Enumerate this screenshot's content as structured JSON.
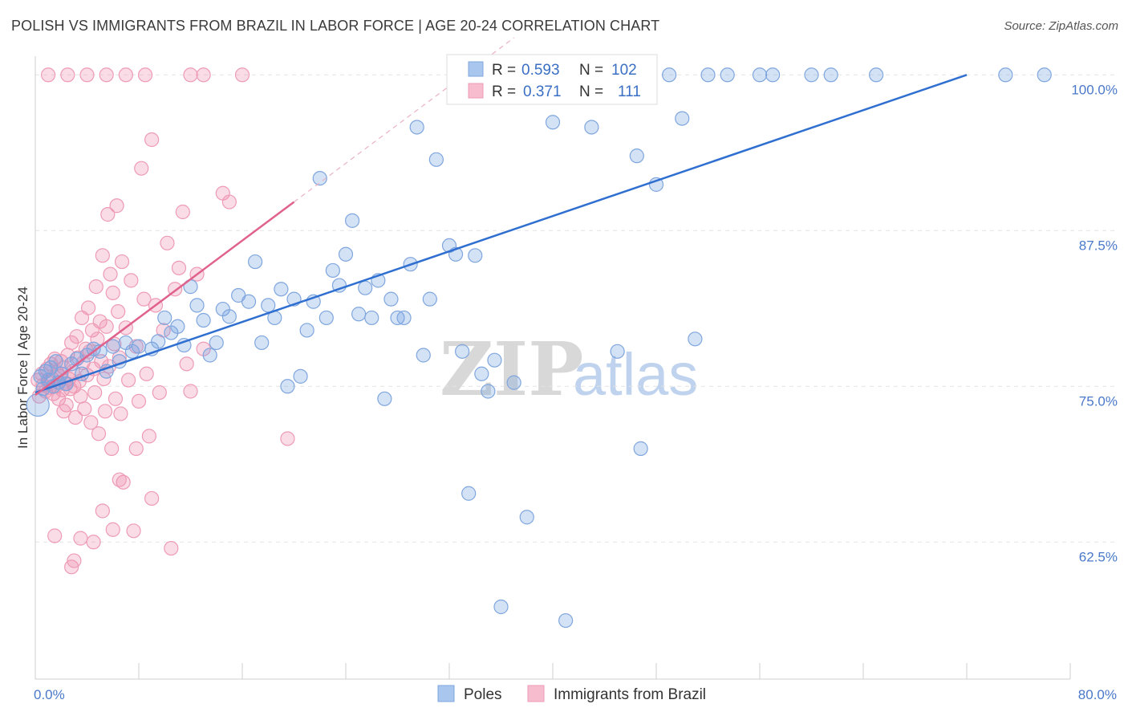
{
  "title": "POLISH VS IMMIGRANTS FROM BRAZIL IN LABOR FORCE | AGE 20-24 CORRELATION CHART",
  "source": "Source: ZipAtlas.com",
  "colors": {
    "poles": "#6f9fe0",
    "brazil": "#f08cab",
    "poles_line": "#2f6fd0",
    "brazil_line": "#e0628c",
    "tick_label": "#4a79c9"
  },
  "chart_data": {
    "type": "scatter",
    "title": "POLISH VS IMMIGRANTS FROM BRAZIL IN LABOR FORCE | AGE 20-24 CORRELATION CHART",
    "xlabel": "",
    "ylabel": "In Labor Force | Age 20-24",
    "xlim": [
      0,
      80
    ],
    "ylim": [
      51.5,
      101.5
    ],
    "x_tick_labels": [
      "0.0%",
      "80.0%"
    ],
    "y_ticks": [
      62.5,
      75.0,
      87.5,
      100.0
    ],
    "y_tick_labels": [
      "62.5%",
      "75.0%",
      "87.5%",
      "100.0%"
    ],
    "legend": {
      "r_label": "R =",
      "n_label": "N =",
      "entries": [
        {
          "name": "Poles",
          "R": "0.593",
          "N": "102"
        },
        {
          "name": "Immigrants from Brazil",
          "R": "0.371",
          "N": "111"
        }
      ]
    },
    "series": [
      {
        "name": "Poles",
        "trend": {
          "x0": 0.0,
          "y0": 74.5,
          "x1": 72.0,
          "y1": 100.0
        },
        "points": [
          [
            0.2,
            73.5
          ],
          [
            0.4,
            75.8
          ],
          [
            0.6,
            74.8
          ],
          [
            0.8,
            76.2
          ],
          [
            1.0,
            75.5
          ],
          [
            1.2,
            76.5
          ],
          [
            1.4,
            75.0
          ],
          [
            1.6,
            77.0
          ],
          [
            1.8,
            75.3
          ],
          [
            2.0,
            76.0
          ],
          [
            2.4,
            75.2
          ],
          [
            2.8,
            76.8
          ],
          [
            3.2,
            77.2
          ],
          [
            3.6,
            76.0
          ],
          [
            4.0,
            77.5
          ],
          [
            4.5,
            78.0
          ],
          [
            5.0,
            77.8
          ],
          [
            5.5,
            76.2
          ],
          [
            6.0,
            78.2
          ],
          [
            6.5,
            77.0
          ],
          [
            7.0,
            78.5
          ],
          [
            7.5,
            77.8
          ],
          [
            8.0,
            78.2
          ],
          [
            9.0,
            78.0
          ],
          [
            9.5,
            78.6
          ],
          [
            10.0,
            80.5
          ],
          [
            10.5,
            79.3
          ],
          [
            11.0,
            79.8
          ],
          [
            11.5,
            78.3
          ],
          [
            12.0,
            83.0
          ],
          [
            12.5,
            81.5
          ],
          [
            13.0,
            80.3
          ],
          [
            13.5,
            77.5
          ],
          [
            14.0,
            78.5
          ],
          [
            14.5,
            81.2
          ],
          [
            15.0,
            80.6
          ],
          [
            15.7,
            82.3
          ],
          [
            16.5,
            81.8
          ],
          [
            17.0,
            85.0
          ],
          [
            17.5,
            78.5
          ],
          [
            18.0,
            81.5
          ],
          [
            18.5,
            80.5
          ],
          [
            19.0,
            82.8
          ],
          [
            19.5,
            75.0
          ],
          [
            20.0,
            82.0
          ],
          [
            20.5,
            75.8
          ],
          [
            21.0,
            79.5
          ],
          [
            21.5,
            81.8
          ],
          [
            22.0,
            91.7
          ],
          [
            22.5,
            80.5
          ],
          [
            23.0,
            84.3
          ],
          [
            23.5,
            83.1
          ],
          [
            24.0,
            85.6
          ],
          [
            24.5,
            88.3
          ],
          [
            25.0,
            80.8
          ],
          [
            25.5,
            82.9
          ],
          [
            26.0,
            80.5
          ],
          [
            26.5,
            83.5
          ],
          [
            27.0,
            74.0
          ],
          [
            27.5,
            82.0
          ],
          [
            28.0,
            80.5
          ],
          [
            28.5,
            80.5
          ],
          [
            29.0,
            84.8
          ],
          [
            29.5,
            95.8
          ],
          [
            30.0,
            77.5
          ],
          [
            30.5,
            82.0
          ],
          [
            31.0,
            93.2
          ],
          [
            32.0,
            86.3
          ],
          [
            32.5,
            85.6
          ],
          [
            33.0,
            77.8
          ],
          [
            33.5,
            66.4
          ],
          [
            34.0,
            85.5
          ],
          [
            34.5,
            76.0
          ],
          [
            35.0,
            74.6
          ],
          [
            35.5,
            77.1
          ],
          [
            36.0,
            100.0
          ],
          [
            37.0,
            75.3
          ],
          [
            38.0,
            64.5
          ],
          [
            39.0,
            100.0
          ],
          [
            40.0,
            96.2
          ],
          [
            41.0,
            56.2
          ],
          [
            42.0,
            100.0
          ],
          [
            43.0,
            95.8
          ],
          [
            45.0,
            77.8
          ],
          [
            45.5,
            100.0
          ],
          [
            46.5,
            93.5
          ],
          [
            46.8,
            70.0
          ],
          [
            47.5,
            100.0
          ],
          [
            48.0,
            91.2
          ],
          [
            49.0,
            100.0
          ],
          [
            50.0,
            96.5
          ],
          [
            51.0,
            78.8
          ],
          [
            52.0,
            100.0
          ],
          [
            53.5,
            100.0
          ],
          [
            56.0,
            100.0
          ],
          [
            57.0,
            100.0
          ],
          [
            60.0,
            100.0
          ],
          [
            61.5,
            100.0
          ],
          [
            65.0,
            100.0
          ],
          [
            75.0,
            100.0
          ],
          [
            78.0,
            100.0
          ],
          [
            36.0,
            57.3
          ]
        ]
      },
      {
        "name": "Immigrants from Brazil",
        "trend": {
          "x0": 0.0,
          "y0": 74.3,
          "x1": 20.0,
          "y1": 89.8,
          "dash_x1": 37.0
        },
        "points": [
          [
            0.2,
            75.5
          ],
          [
            0.3,
            74.2
          ],
          [
            0.5,
            76.0
          ],
          [
            0.6,
            75.1
          ],
          [
            0.8,
            74.6
          ],
          [
            0.9,
            76.4
          ],
          [
            1.0,
            75.3
          ],
          [
            1.1,
            74.9
          ],
          [
            1.2,
            76.8
          ],
          [
            1.3,
            75.6
          ],
          [
            1.4,
            74.4
          ],
          [
            1.5,
            77.2
          ],
          [
            1.6,
            75.0
          ],
          [
            1.7,
            76.1
          ],
          [
            1.8,
            74.0
          ],
          [
            1.9,
            75.8
          ],
          [
            2.0,
            77.0
          ],
          [
            2.1,
            74.7
          ],
          [
            2.2,
            76.5
          ],
          [
            2.3,
            75.2
          ],
          [
            2.4,
            73.5
          ],
          [
            2.5,
            77.5
          ],
          [
            2.6,
            75.6
          ],
          [
            2.7,
            74.8
          ],
          [
            2.8,
            78.5
          ],
          [
            2.9,
            76.2
          ],
          [
            3.0,
            75.0
          ],
          [
            3.1,
            72.5
          ],
          [
            3.2,
            79.0
          ],
          [
            3.3,
            77.3
          ],
          [
            3.4,
            75.4
          ],
          [
            3.5,
            74.2
          ],
          [
            3.6,
            80.5
          ],
          [
            3.7,
            76.9
          ],
          [
            3.8,
            73.2
          ],
          [
            3.9,
            78.0
          ],
          [
            4.0,
            75.9
          ],
          [
            4.1,
            81.3
          ],
          [
            4.2,
            77.8
          ],
          [
            4.3,
            72.1
          ],
          [
            4.4,
            79.5
          ],
          [
            4.5,
            76.4
          ],
          [
            4.6,
            74.5
          ],
          [
            4.7,
            83.0
          ],
          [
            4.8,
            78.8
          ],
          [
            4.9,
            71.2
          ],
          [
            5.0,
            80.2
          ],
          [
            5.1,
            77.0
          ],
          [
            5.2,
            85.5
          ],
          [
            5.3,
            75.6
          ],
          [
            5.4,
            73.0
          ],
          [
            5.5,
            79.8
          ],
          [
            5.6,
            88.8
          ],
          [
            5.7,
            76.6
          ],
          [
            5.8,
            84.0
          ],
          [
            5.9,
            70.0
          ],
          [
            6.0,
            82.5
          ],
          [
            6.1,
            78.4
          ],
          [
            6.2,
            74.0
          ],
          [
            6.3,
            89.5
          ],
          [
            6.4,
            81.0
          ],
          [
            6.5,
            77.3
          ],
          [
            6.6,
            72.8
          ],
          [
            6.7,
            85.0
          ],
          [
            6.8,
            67.3
          ],
          [
            7.0,
            79.7
          ],
          [
            7.2,
            75.5
          ],
          [
            7.4,
            83.5
          ],
          [
            7.6,
            63.4
          ],
          [
            7.8,
            78.2
          ],
          [
            8.0,
            73.8
          ],
          [
            8.2,
            92.5
          ],
          [
            8.4,
            82.0
          ],
          [
            8.6,
            76.0
          ],
          [
            8.8,
            71.0
          ],
          [
            9.0,
            94.8
          ],
          [
            9.3,
            81.5
          ],
          [
            9.6,
            74.5
          ],
          [
            9.9,
            79.5
          ],
          [
            10.2,
            86.5
          ],
          [
            10.5,
            62.0
          ],
          [
            10.8,
            82.8
          ],
          [
            11.1,
            84.5
          ],
          [
            11.4,
            89.0
          ],
          [
            11.7,
            76.8
          ],
          [
            12.0,
            74.6
          ],
          [
            12.5,
            84.0
          ],
          [
            13.0,
            78.0
          ],
          [
            14.5,
            90.5
          ],
          [
            15.0,
            89.8
          ],
          [
            19.5,
            70.8
          ],
          [
            1.5,
            63.0
          ],
          [
            3.5,
            62.8
          ],
          [
            4.5,
            62.5
          ],
          [
            2.8,
            60.5
          ],
          [
            1.0,
            100.0
          ],
          [
            2.5,
            100.0
          ],
          [
            4.0,
            100.0
          ],
          [
            5.5,
            100.0
          ],
          [
            7.0,
            100.0
          ],
          [
            8.5,
            100.0
          ],
          [
            12.0,
            100.0
          ],
          [
            13.0,
            100.0
          ],
          [
            16.0,
            100.0
          ],
          [
            5.2,
            65.0
          ],
          [
            6.5,
            67.5
          ],
          [
            7.8,
            70.0
          ],
          [
            2.2,
            73.0
          ],
          [
            3.0,
            61.0
          ],
          [
            6.0,
            63.5
          ],
          [
            9.0,
            66.0
          ]
        ]
      }
    ]
  },
  "bottom_legend": {
    "poles": "Poles",
    "brazil": "Immigrants from Brazil"
  },
  "watermark": {
    "part1": "ZIP",
    "part2": "atlas"
  }
}
